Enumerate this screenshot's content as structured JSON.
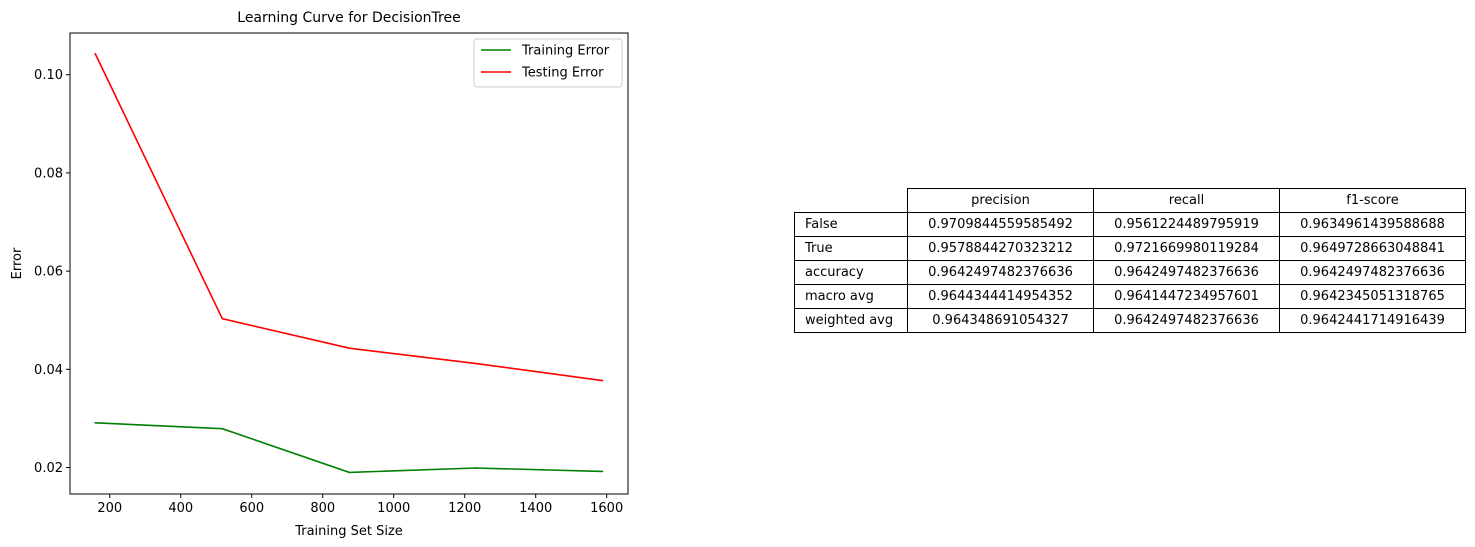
{
  "chart_data": {
    "type": "line",
    "title": "Learning Curve for DecisionTree",
    "xlabel": "Training Set Size",
    "ylabel": "Error",
    "xlim": [
      88,
      1660
    ],
    "ylim": [
      0.0146,
      0.1085
    ],
    "x": [
      159,
      517,
      875,
      1230,
      1588
    ],
    "xticks": [
      200,
      400,
      600,
      800,
      1000,
      1200,
      1400,
      1600
    ],
    "yticks": [
      0.02,
      0.04,
      0.06,
      0.08,
      0.1
    ],
    "yticklabels": [
      "0.02",
      "0.04",
      "0.06",
      "0.08",
      "0.10"
    ],
    "legend_position": "upper-right",
    "grid": false,
    "series": [
      {
        "name": "Training Error",
        "color": "#008000",
        "values": [
          0.0291,
          0.0279,
          0.019,
          0.0199,
          0.0192
        ]
      },
      {
        "name": "Testing Error",
        "color": "#ff0000",
        "values": [
          0.1043,
          0.0503,
          0.0443,
          0.0412,
          0.0377
        ]
      }
    ]
  },
  "table": {
    "columns": [
      "precision",
      "recall",
      "f1-score"
    ],
    "rows": [
      {
        "label": "False",
        "cells": [
          "0.9709844559585492",
          "0.9561224489795919",
          "0.9634961439588688"
        ]
      },
      {
        "label": "True",
        "cells": [
          "0.9578844270323212",
          "0.9721669980119284",
          "0.9649728663048841"
        ]
      },
      {
        "label": "accuracy",
        "cells": [
          "0.9642497482376636",
          "0.9642497482376636",
          "0.9642497482376636"
        ]
      },
      {
        "label": "macro avg",
        "cells": [
          "0.9644344414954352",
          "0.9641447234957601",
          "0.9642345051318765"
        ]
      },
      {
        "label": "weighted avg",
        "cells": [
          "0.964348691054327",
          "0.9642497482376636",
          "0.9642441714916439"
        ]
      }
    ]
  }
}
